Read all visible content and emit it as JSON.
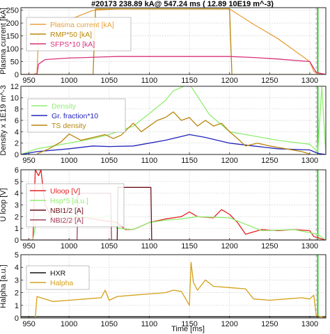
{
  "title": "#20173   238.89 kA@ 547.24 ms ( 12.89 10E19 m^-3)",
  "xlabel": "Time [ms]",
  "chart_data": [
    {
      "type": "line",
      "ylabel": "Plasma current [kA]",
      "xlim": [
        940,
        1320
      ],
      "ylim": [
        0,
        260
      ],
      "xticks": [
        "950",
        "1000",
        "1050",
        "1100",
        "1150",
        "1200",
        "1250",
        "1300"
      ],
      "yticks": [
        "0",
        "50",
        "100",
        "150",
        "200",
        "250"
      ],
      "grid": true,
      "legend_position": "top-left",
      "series": [
        {
          "name": "Plasma current [kA]",
          "color": "#e8a03a",
          "x": [
            940,
            955,
            960,
            962,
            970,
            990,
            1010,
            1030,
            1060,
            1100,
            1150,
            1200,
            1205,
            1230,
            1260,
            1300,
            1305,
            1310,
            1320
          ],
          "y": [
            0,
            0,
            5,
            155,
            175,
            200,
            225,
            250,
            255,
            255,
            255,
            255,
            245,
            195,
            140,
            50,
            12,
            3,
            0
          ]
        },
        {
          "name": "RMP*50 [kA]",
          "color": "#b8860b",
          "x": [
            940,
            1030,
            1033,
            1200,
            1203,
            1320
          ],
          "y": [
            0,
            0,
            255,
            255,
            0,
            0
          ]
        },
        {
          "name": "SFPS*10 [kA]",
          "color": "#d6337a",
          "x": [
            940,
            960,
            962,
            970,
            1000,
            1040,
            1060,
            1100,
            1150,
            1200,
            1230,
            1260,
            1300,
            1308,
            1320
          ],
          "y": [
            0,
            0,
            40,
            58,
            64,
            68,
            70,
            70,
            70,
            70,
            66,
            60,
            50,
            8,
            0
          ]
        }
      ],
      "vlines": [
        {
          "x": 1308,
          "color": "#aaaaaa",
          "dash": true
        },
        {
          "x": 1310,
          "color": "#00bb00",
          "dash": false
        }
      ]
    },
    {
      "type": "line",
      "ylabel": "Density x 1E19 m^-3",
      "xlim": [
        940,
        1320
      ],
      "ylim": [
        0,
        12
      ],
      "xticks": [
        "950",
        "1000",
        "1050",
        "1100",
        "1150",
        "1200",
        "1250",
        "1300"
      ],
      "yticks": [
        "0",
        "2",
        "4",
        "6",
        "8",
        "10",
        "12"
      ],
      "grid": true,
      "legend_position": "top-left",
      "series": [
        {
          "name": "Density",
          "color": "#90ee70",
          "x": [
            940,
            960,
            1000,
            1030,
            1050,
            1080,
            1100,
            1120,
            1130,
            1150,
            1175,
            1200,
            1220,
            1260,
            1300,
            1310,
            1315,
            1320
          ],
          "y": [
            0,
            1.0,
            2.0,
            2.8,
            3.5,
            5.0,
            7.2,
            9.5,
            11.2,
            12.4,
            7.0,
            4.0,
            3.5,
            2.5,
            1.8,
            0.5,
            12,
            0
          ]
        },
        {
          "name": "Gr. fraction*10",
          "color": "#2222bb",
          "x": [
            940,
            960,
            1000,
            1030,
            1050,
            1080,
            1100,
            1120,
            1150,
            1170,
            1200,
            1230,
            1260,
            1300,
            1310,
            1320
          ],
          "y": [
            0,
            0.5,
            1.0,
            1.5,
            1.4,
            1.5,
            2.0,
            2.5,
            3.5,
            3.0,
            2.0,
            1.5,
            1.0,
            0.8,
            0.2,
            0
          ]
        },
        {
          "name": "TS density",
          "color": "#b8860b",
          "x": [
            960,
            975,
            990,
            1000,
            1015,
            1030,
            1045,
            1055,
            1065,
            1080,
            1090,
            1100,
            1110,
            1120,
            1130,
            1140,
            1150,
            1160,
            1170,
            1180,
            1190,
            1200,
            1210,
            1220,
            1235,
            1250,
            1270,
            1290,
            1300
          ],
          "y": [
            0.1,
            1.0,
            2.2,
            3.6,
            2.5,
            3.0,
            3.5,
            2.8,
            3.4,
            5.5,
            4.0,
            5.0,
            6.0,
            6.5,
            7.5,
            6.0,
            6.5,
            5.0,
            6.0,
            5.0,
            5.5,
            4.0,
            2.8,
            1.5,
            2.0,
            1.5,
            1.0,
            0.5,
            0.1
          ]
        }
      ],
      "vlines": [
        {
          "x": 1308,
          "color": "#aaaaaa",
          "dash": true
        },
        {
          "x": 1310,
          "color": "#00bb00",
          "dash": false
        }
      ]
    },
    {
      "type": "line",
      "ylabel": "U loop [V]",
      "xlim": [
        940,
        1320
      ],
      "ylim": [
        0,
        6
      ],
      "xticks": [
        "950",
        "1000",
        "1050",
        "1100",
        "1150",
        "1200",
        "1250",
        "1300"
      ],
      "yticks": [
        "0",
        "1",
        "2",
        "3",
        "4",
        "5",
        "6"
      ],
      "grid": true,
      "legend_position": "top-left",
      "series": [
        {
          "name": "Uloop [V]",
          "color": "#e52020",
          "x": [
            940,
            955,
            958,
            962,
            965,
            970,
            980,
            990,
            1000,
            1010,
            1030,
            1050,
            1060,
            1070,
            1080,
            1100,
            1120,
            1140,
            1150,
            1160,
            1180,
            1190,
            1200,
            1210,
            1220,
            1240,
            1260,
            1280,
            1300,
            1305,
            1310,
            1320
          ],
          "y": [
            0,
            0,
            6,
            5.5,
            6,
            3.0,
            1.8,
            1.5,
            1.4,
            2.0,
            1.8,
            1.6,
            1.5,
            0.9,
            0.9,
            1.5,
            1.8,
            2.0,
            2.4,
            2.0,
            1.9,
            2.6,
            2.2,
            1.5,
            0.5,
            0.9,
            0.8,
            0.9,
            0.8,
            0.3,
            0.2,
            0
          ]
        },
        {
          "name": "Hsp*5 [a.u.]",
          "color": "#90ee70",
          "x": [
            940,
            955,
            960,
            980,
            1000,
            1020,
            1040,
            1050,
            1060,
            1080,
            1100,
            1120,
            1140,
            1160,
            1200,
            1240,
            1280,
            1310,
            1320
          ],
          "y": [
            0,
            0,
            2.0,
            2.3,
            2.0,
            2.0,
            1.9,
            2.1,
            1.0,
            0.9,
            1.5,
            1.7,
            1.8,
            2.0,
            1.9,
            0.8,
            0.9,
            0.5,
            0
          ]
        },
        {
          "name": "NBI1/2 [A]",
          "color": "#6b0f1a",
          "x": [
            940,
            1060,
            1061,
            1102,
            1103,
            1320
          ],
          "y": [
            0,
            0,
            4.5,
            4.5,
            0,
            0
          ]
        },
        {
          "name": "NBI2/2 [A]",
          "color": "#a04060",
          "x": [
            940,
            1010,
            1011,
            1052,
            1053,
            1320
          ],
          "y": [
            0,
            0,
            4.0,
            4.0,
            0,
            0
          ]
        }
      ],
      "vlines": [
        {
          "x": 1308,
          "color": "#aaaaaa",
          "dash": true
        },
        {
          "x": 1310,
          "color": "#00bb00",
          "dash": false
        }
      ]
    },
    {
      "type": "line",
      "ylabel": "Halpha [a.u.]",
      "xlim": [
        940,
        1320
      ],
      "ylim": [
        0,
        5
      ],
      "xticks": [
        "950",
        "1000",
        "1050",
        "1100",
        "1150",
        "1200",
        "1250",
        "1300"
      ],
      "yticks": [
        "0",
        "1",
        "2",
        "3",
        "4",
        "5"
      ],
      "grid": true,
      "legend_position": "top-left",
      "series": [
        {
          "name": "HXR",
          "color": "#111111",
          "x": [
            940,
            1320
          ],
          "y": [
            0.1,
            0.1
          ]
        },
        {
          "name": "Halpha",
          "color": "#d4a017",
          "x": [
            940,
            958,
            960,
            970,
            980,
            1000,
            1020,
            1040,
            1045,
            1050,
            1060,
            1080,
            1100,
            1120,
            1130,
            1140,
            1150,
            1152,
            1155,
            1160,
            1170,
            1180,
            1200,
            1220,
            1230,
            1250,
            1270,
            1290,
            1300,
            1305,
            1308,
            1320
          ],
          "y": [
            0,
            0,
            1.7,
            1.5,
            1.3,
            1.4,
            1.5,
            1.6,
            2.2,
            1.4,
            1.7,
            1.8,
            1.9,
            2.0,
            2.2,
            2.1,
            1.0,
            4.4,
            2.8,
            2.2,
            3.0,
            2.5,
            2.4,
            2.3,
            1.5,
            1.4,
            1.5,
            1.6,
            1.5,
            1.8,
            0.2,
            0
          ]
        }
      ],
      "vlines": [
        {
          "x": 1308,
          "color": "#aaaaaa",
          "dash": true
        },
        {
          "x": 1310,
          "color": "#00bb00",
          "dash": false
        }
      ]
    }
  ]
}
